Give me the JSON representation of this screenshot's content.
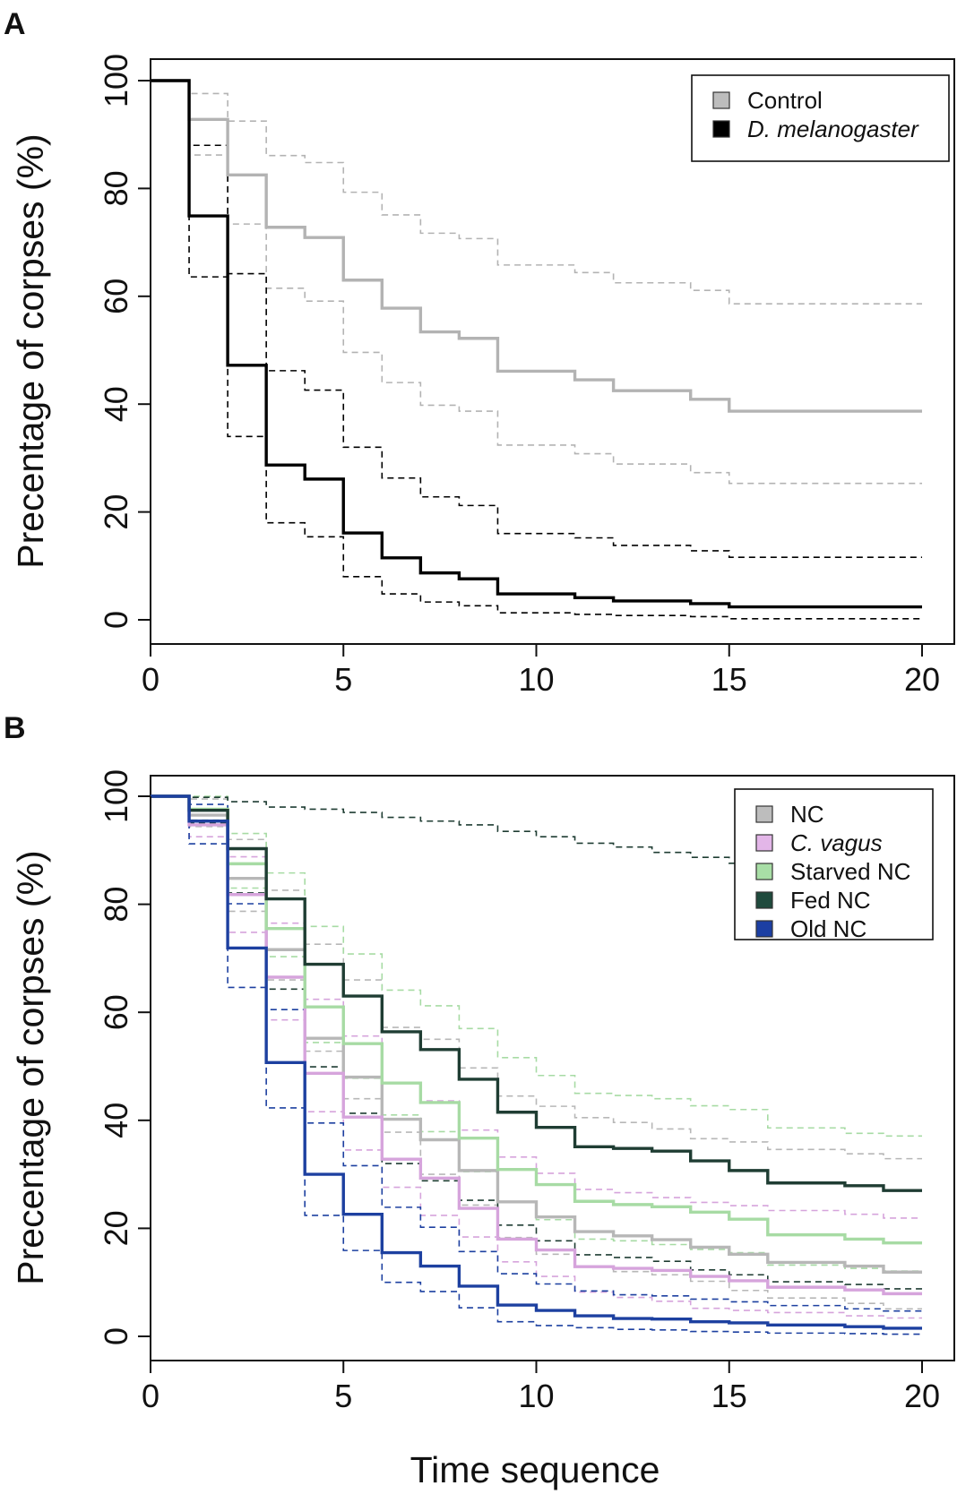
{
  "chart_data": [
    {
      "panel": "A",
      "type": "line",
      "step": true,
      "ylabel": "Precentage of corpses (%)",
      "xlabel": "",
      "xlim": [
        0,
        20
      ],
      "ylim": [
        0,
        100
      ],
      "xticks": [
        "0",
        "5",
        "10",
        "15",
        "20"
      ],
      "yticks": [
        "0",
        "20",
        "40",
        "60",
        "80",
        "100"
      ],
      "legend_position": "top-right",
      "series": [
        {
          "name": "Control",
          "italic": false,
          "color": "#b3b3b3",
          "swatch": "#bdbdbd",
          "x": [
            0,
            1,
            2,
            3,
            4,
            5,
            6,
            7,
            8,
            9,
            10,
            11,
            12,
            13,
            14,
            15,
            16,
            17,
            18,
            19,
            20
          ],
          "estimate": [
            100,
            92.8,
            82.5,
            72.8,
            70.9,
            63.0,
            57.8,
            53.4,
            52.2,
            46.1,
            46.1,
            44.5,
            42.5,
            42.5,
            40.9,
            38.7,
            38.7,
            38.7,
            38.7,
            38.7,
            38.7
          ],
          "upper": [
            100,
            97.6,
            92.5,
            86.1,
            84.8,
            79.3,
            75.1,
            71.7,
            70.7,
            65.8,
            65.8,
            64.4,
            62.5,
            62.5,
            61.1,
            58.6,
            58.6,
            58.6,
            58.6,
            58.6,
            58.6
          ],
          "lower": [
            100,
            86.2,
            73.4,
            61.5,
            59.1,
            49.6,
            44.0,
            39.8,
            38.7,
            32.4,
            32.4,
            30.8,
            28.9,
            28.9,
            27.3,
            25.3,
            25.3,
            25.3,
            25.3,
            25.3,
            25.3
          ]
        },
        {
          "name": "D. melanogaster",
          "italic": true,
          "color": "#000000",
          "swatch": "#000000",
          "x": [
            0,
            1,
            2,
            3,
            4,
            5,
            6,
            7,
            8,
            9,
            10,
            11,
            12,
            13,
            14,
            15,
            16,
            17,
            18,
            19,
            20
          ],
          "estimate": [
            100,
            74.9,
            47.2,
            28.7,
            26.1,
            16.1,
            11.5,
            8.7,
            7.6,
            4.8,
            4.8,
            4.1,
            3.5,
            3.5,
            3.0,
            2.4,
            2.4,
            2.4,
            2.4,
            2.4,
            2.4
          ],
          "upper": [
            100,
            88.0,
            64.2,
            46.2,
            42.6,
            32.0,
            26.3,
            22.8,
            21.2,
            16.0,
            16.0,
            15.2,
            13.8,
            13.8,
            12.8,
            11.6,
            11.6,
            11.6,
            11.6,
            11.6,
            11.6
          ],
          "lower": [
            100,
            63.6,
            34.0,
            18.0,
            15.4,
            8.0,
            4.8,
            3.3,
            2.6,
            1.3,
            1.3,
            1.0,
            0.8,
            0.8,
            0.6,
            0.2,
            0.2,
            0.2,
            0.2,
            0.2,
            0.2
          ]
        }
      ]
    },
    {
      "panel": "B",
      "type": "line",
      "step": true,
      "ylabel": "Precentage of corpses (%)",
      "xlabel": "Time sequence",
      "xlim": [
        0,
        20
      ],
      "ylim": [
        0,
        100
      ],
      "xticks": [
        "0",
        "5",
        "10",
        "15",
        "20"
      ],
      "yticks": [
        "0",
        "20",
        "40",
        "60",
        "80",
        "100"
      ],
      "legend_position": "top-right",
      "series": [
        {
          "name": "NC",
          "italic": false,
          "color": "#b7b7b7",
          "swatch": "#bdbdbd",
          "x": [
            0,
            1,
            2,
            3,
            4,
            5,
            6,
            7,
            8,
            9,
            10,
            11,
            12,
            13,
            14,
            15,
            16,
            17,
            18,
            19,
            20
          ],
          "estimate": [
            100,
            96.5,
            84.8,
            71.6,
            55.2,
            48.0,
            40.2,
            36.4,
            30.7,
            24.9,
            22.1,
            19.4,
            18.6,
            17.9,
            16.5,
            15.2,
            13.7,
            13.7,
            13.0,
            11.9,
            11.9
          ],
          "upper": [
            100,
            99.5,
            92.0,
            82.6,
            72.6,
            66.0,
            57.2,
            55.0,
            49.7,
            44.5,
            42.6,
            40.5,
            39.6,
            38.4,
            36.6,
            36.0,
            34.6,
            34.6,
            33.8,
            32.9,
            32.9
          ],
          "lower": [
            100,
            94.4,
            78.7,
            66.0,
            52.8,
            44.0,
            37.8,
            30.0,
            24.3,
            18.3,
            15.2,
            13.0,
            12.0,
            11.4,
            10.2,
            8.5,
            7.1,
            7.1,
            6.1,
            5.1,
            5.1
          ]
        },
        {
          "name": "C. vagus",
          "italic": true,
          "color": "#d6a4dc",
          "swatch": "#e3b6e8",
          "x": [
            0,
            1,
            2,
            3,
            4,
            5,
            6,
            7,
            8,
            9,
            10,
            11,
            12,
            13,
            14,
            15,
            16,
            17,
            18,
            19,
            20
          ],
          "estimate": [
            100,
            94.7,
            81.8,
            66.5,
            48.7,
            40.6,
            32.8,
            29.3,
            23.7,
            18.0,
            16.0,
            12.9,
            12.6,
            12.2,
            11.1,
            10.3,
            9.1,
            9.1,
            8.6,
            7.9,
            7.9
          ],
          "upper": [
            100,
            97.6,
            88.8,
            76.5,
            62.4,
            55.6,
            46.9,
            43.6,
            38.2,
            33.2,
            30.2,
            27.2,
            26.6,
            25.7,
            24.8,
            24.2,
            23.3,
            23.3,
            22.6,
            21.9,
            21.9
          ],
          "lower": [
            100,
            92.5,
            74.8,
            58.6,
            41.6,
            34.5,
            27.6,
            22.4,
            18.4,
            13.8,
            11.1,
            8.2,
            7.2,
            6.5,
            5.2,
            4.8,
            4.4,
            4.4,
            3.8,
            3.4,
            3.4
          ]
        },
        {
          "name": "Starved NC",
          "italic": false,
          "color": "#a7dba4",
          "swatch": "#a8dea6",
          "x": [
            0,
            1,
            2,
            3,
            4,
            5,
            6,
            7,
            8,
            9,
            10,
            11,
            12,
            13,
            14,
            15,
            16,
            17,
            18,
            19,
            20
          ],
          "estimate": [
            100,
            97.6,
            87.5,
            75.5,
            61.0,
            54.2,
            46.9,
            43.3,
            36.7,
            30.9,
            28.1,
            25.0,
            24.4,
            24.0,
            23.0,
            21.7,
            18.8,
            18.8,
            18.0,
            17.3,
            17.3
          ],
          "upper": [
            100,
            100,
            93.1,
            85.8,
            75.9,
            70.8,
            64.1,
            61.2,
            57.0,
            51.6,
            48.3,
            45.0,
            44.6,
            44.0,
            42.7,
            42.0,
            38.6,
            38.6,
            37.6,
            37.1,
            37.1
          ],
          "lower": [
            100,
            95.6,
            83.0,
            70.3,
            54.4,
            47.8,
            41.0,
            37.9,
            30.5,
            24.9,
            21.6,
            18.0,
            17.7,
            17.0,
            16.1,
            15.5,
            13.2,
            13.2,
            12.6,
            12.1,
            12.1
          ]
        },
        {
          "name": "Fed NC",
          "italic": false,
          "color": "#1f3d33",
          "swatch": "#1f4a3d",
          "x": [
            0,
            1,
            2,
            3,
            4,
            5,
            6,
            7,
            8,
            9,
            10,
            11,
            12,
            13,
            14,
            15,
            16,
            17,
            18,
            19,
            20
          ],
          "estimate": [
            100,
            97.4,
            90.3,
            81.0,
            68.9,
            63.0,
            56.4,
            53.1,
            47.6,
            41.5,
            38.7,
            35.1,
            34.8,
            34.3,
            32.5,
            30.7,
            28.4,
            28.4,
            27.9,
            27.0,
            27.0
          ],
          "upper": [
            100,
            99.8,
            99.0,
            98.0,
            97.6,
            97.0,
            96.1,
            95.4,
            94.7,
            93.5,
            92.5,
            91.3,
            90.6,
            89.6,
            88.7,
            87.6,
            86.5,
            86.5,
            85.9,
            85.3,
            85.3
          ],
          "lower": [
            100,
            95.0,
            82.1,
            64.3,
            49.9,
            41.3,
            32.0,
            28.8,
            25.2,
            20.6,
            17.7,
            15.1,
            14.6,
            13.9,
            12.3,
            11.4,
            10.1,
            10.1,
            9.6,
            8.8,
            8.8
          ]
        },
        {
          "name": "Old NC",
          "italic": false,
          "color": "#1d40a0",
          "swatch": "#1c3fa3",
          "x": [
            0,
            1,
            2,
            3,
            4,
            5,
            6,
            7,
            8,
            9,
            10,
            11,
            12,
            13,
            14,
            15,
            16,
            17,
            18,
            19,
            20
          ],
          "estimate": [
            100,
            95.4,
            71.9,
            50.7,
            30.0,
            22.6,
            15.5,
            13.0,
            9.3,
            5.8,
            4.8,
            3.8,
            3.3,
            3.2,
            2.7,
            2.5,
            2.1,
            2.1,
            1.8,
            1.5,
            1.5
          ],
          "upper": [
            100,
            98.5,
            80.1,
            60.5,
            39.5,
            31.6,
            23.9,
            20.2,
            15.7,
            11.6,
            9.7,
            8.4,
            7.7,
            7.5,
            6.9,
            6.4,
            5.7,
            5.7,
            5.1,
            4.7,
            4.7
          ],
          "lower": [
            100,
            91.2,
            64.6,
            42.3,
            22.4,
            15.9,
            10.0,
            8.3,
            5.3,
            2.7,
            2.0,
            1.6,
            1.3,
            1.2,
            0.9,
            0.8,
            0.6,
            0.6,
            0.5,
            0.4,
            0.4
          ]
        }
      ]
    }
  ]
}
